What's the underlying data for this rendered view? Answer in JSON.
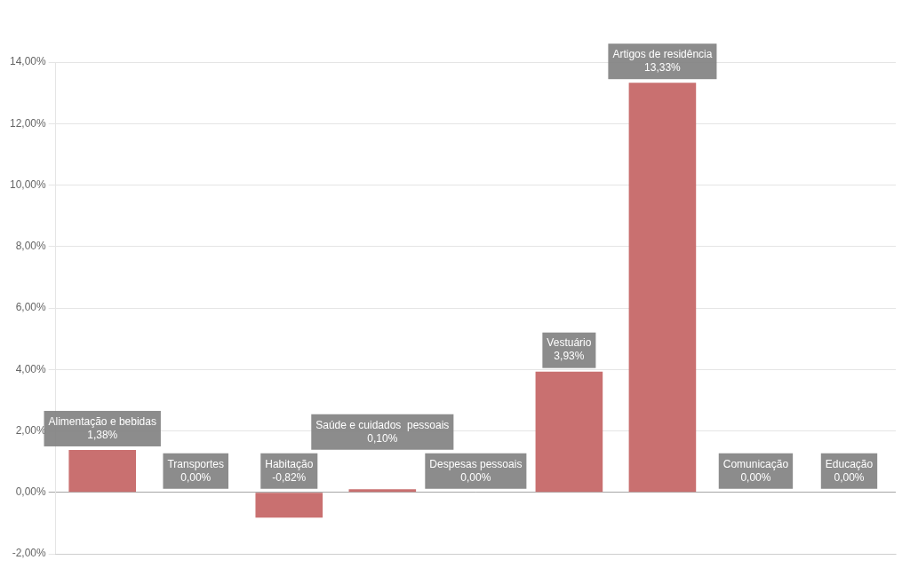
{
  "chart_data": {
    "type": "bar",
    "categories": [
      "Alimentação e bebidas",
      "Transportes",
      "Habitação",
      "Saúde e cuidados  pessoais",
      "Despesas pessoais",
      "Vestuário",
      "Artigos de residência",
      "Comunicação",
      "Educação"
    ],
    "values": [
      1.38,
      0.0,
      -0.82,
      0.1,
      0.0,
      3.93,
      13.33,
      0.0,
      0.0
    ],
    "value_labels": [
      "1,38%",
      "0,00%",
      "-0,82%",
      "0,10%",
      "0,00%",
      "3,93%",
      "13,33%",
      "0,00%",
      "0,00%"
    ],
    "data_labels": true,
    "color": "#c97070",
    "ylim": [
      -2.0,
      14.0
    ],
    "yticks": [
      {
        "value": -2.0,
        "label": "-2,00%"
      },
      {
        "value": 0.0,
        "label": "0,00%"
      },
      {
        "value": 2.0,
        "label": "2,00%"
      },
      {
        "value": 4.0,
        "label": "4,00%"
      },
      {
        "value": 6.0,
        "label": "6,00%"
      },
      {
        "value": 8.0,
        "label": "8,00%"
      },
      {
        "value": 10.0,
        "label": "10,00%"
      },
      {
        "value": 12.0,
        "label": "12,00%"
      },
      {
        "value": 14.0,
        "label": "14,00%"
      }
    ],
    "grid": true,
    "tick_labels": "y"
  }
}
